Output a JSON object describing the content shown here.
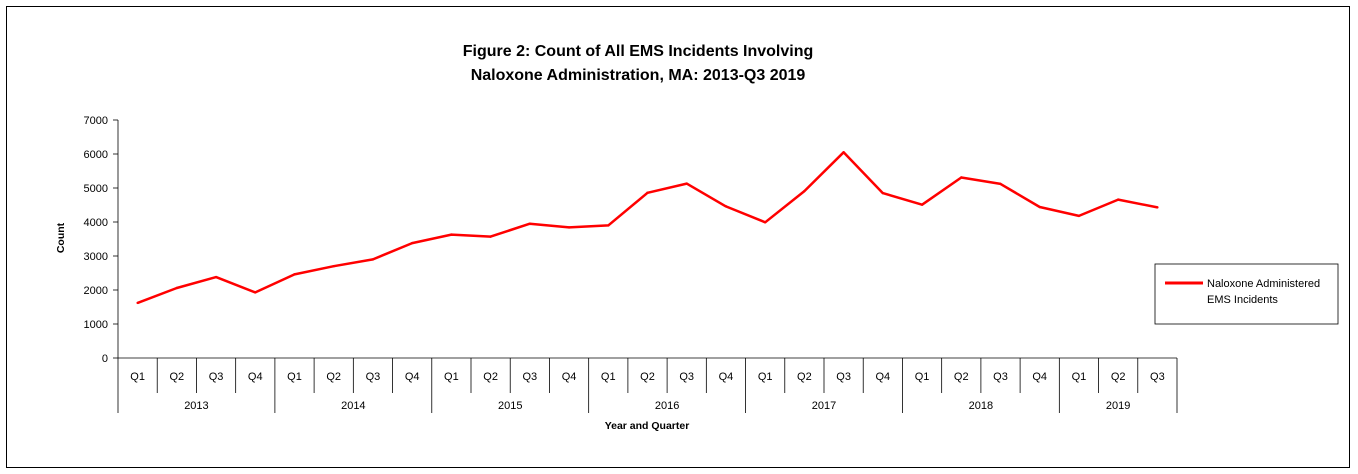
{
  "chart_data": {
    "type": "line",
    "title_lines": [
      "Figure 2: Count of All EMS Incidents Involving",
      "Naloxone Administration, MA: 2013-Q3 2019"
    ],
    "xlabel": "Year and Quarter",
    "ylabel": "Count",
    "ylim": [
      0,
      7000
    ],
    "yticks": [
      0,
      1000,
      2000,
      3000,
      4000,
      5000,
      6000,
      7000
    ],
    "grid": false,
    "legend_position": "right",
    "line_color": "#ff0000",
    "years": [
      {
        "label": "2013",
        "count": 4
      },
      {
        "label": "2014",
        "count": 4
      },
      {
        "label": "2015",
        "count": 4
      },
      {
        "label": "2016",
        "count": 4
      },
      {
        "label": "2017",
        "count": 4
      },
      {
        "label": "2018",
        "count": 4
      },
      {
        "label": "2019",
        "count": 3
      }
    ],
    "quarters": [
      "Q1",
      "Q2",
      "Q3",
      "Q4",
      "Q1",
      "Q2",
      "Q3",
      "Q4",
      "Q1",
      "Q2",
      "Q3",
      "Q4",
      "Q1",
      "Q2",
      "Q3",
      "Q4",
      "Q1",
      "Q2",
      "Q3",
      "Q4",
      "Q1",
      "Q2",
      "Q3",
      "Q4",
      "Q1",
      "Q2",
      "Q3"
    ],
    "series": [
      {
        "name_lines": [
          "Naloxone Administered",
          "EMS Incidents"
        ],
        "values": [
          1620,
          2060,
          2380,
          1930,
          2460,
          2700,
          2900,
          3380,
          3630,
          3570,
          3950,
          3840,
          3900,
          4860,
          5130,
          4460,
          3990,
          4910,
          6050,
          4850,
          4510,
          5310,
          5120,
          4440,
          4180,
          4660,
          4430
        ]
      }
    ]
  }
}
